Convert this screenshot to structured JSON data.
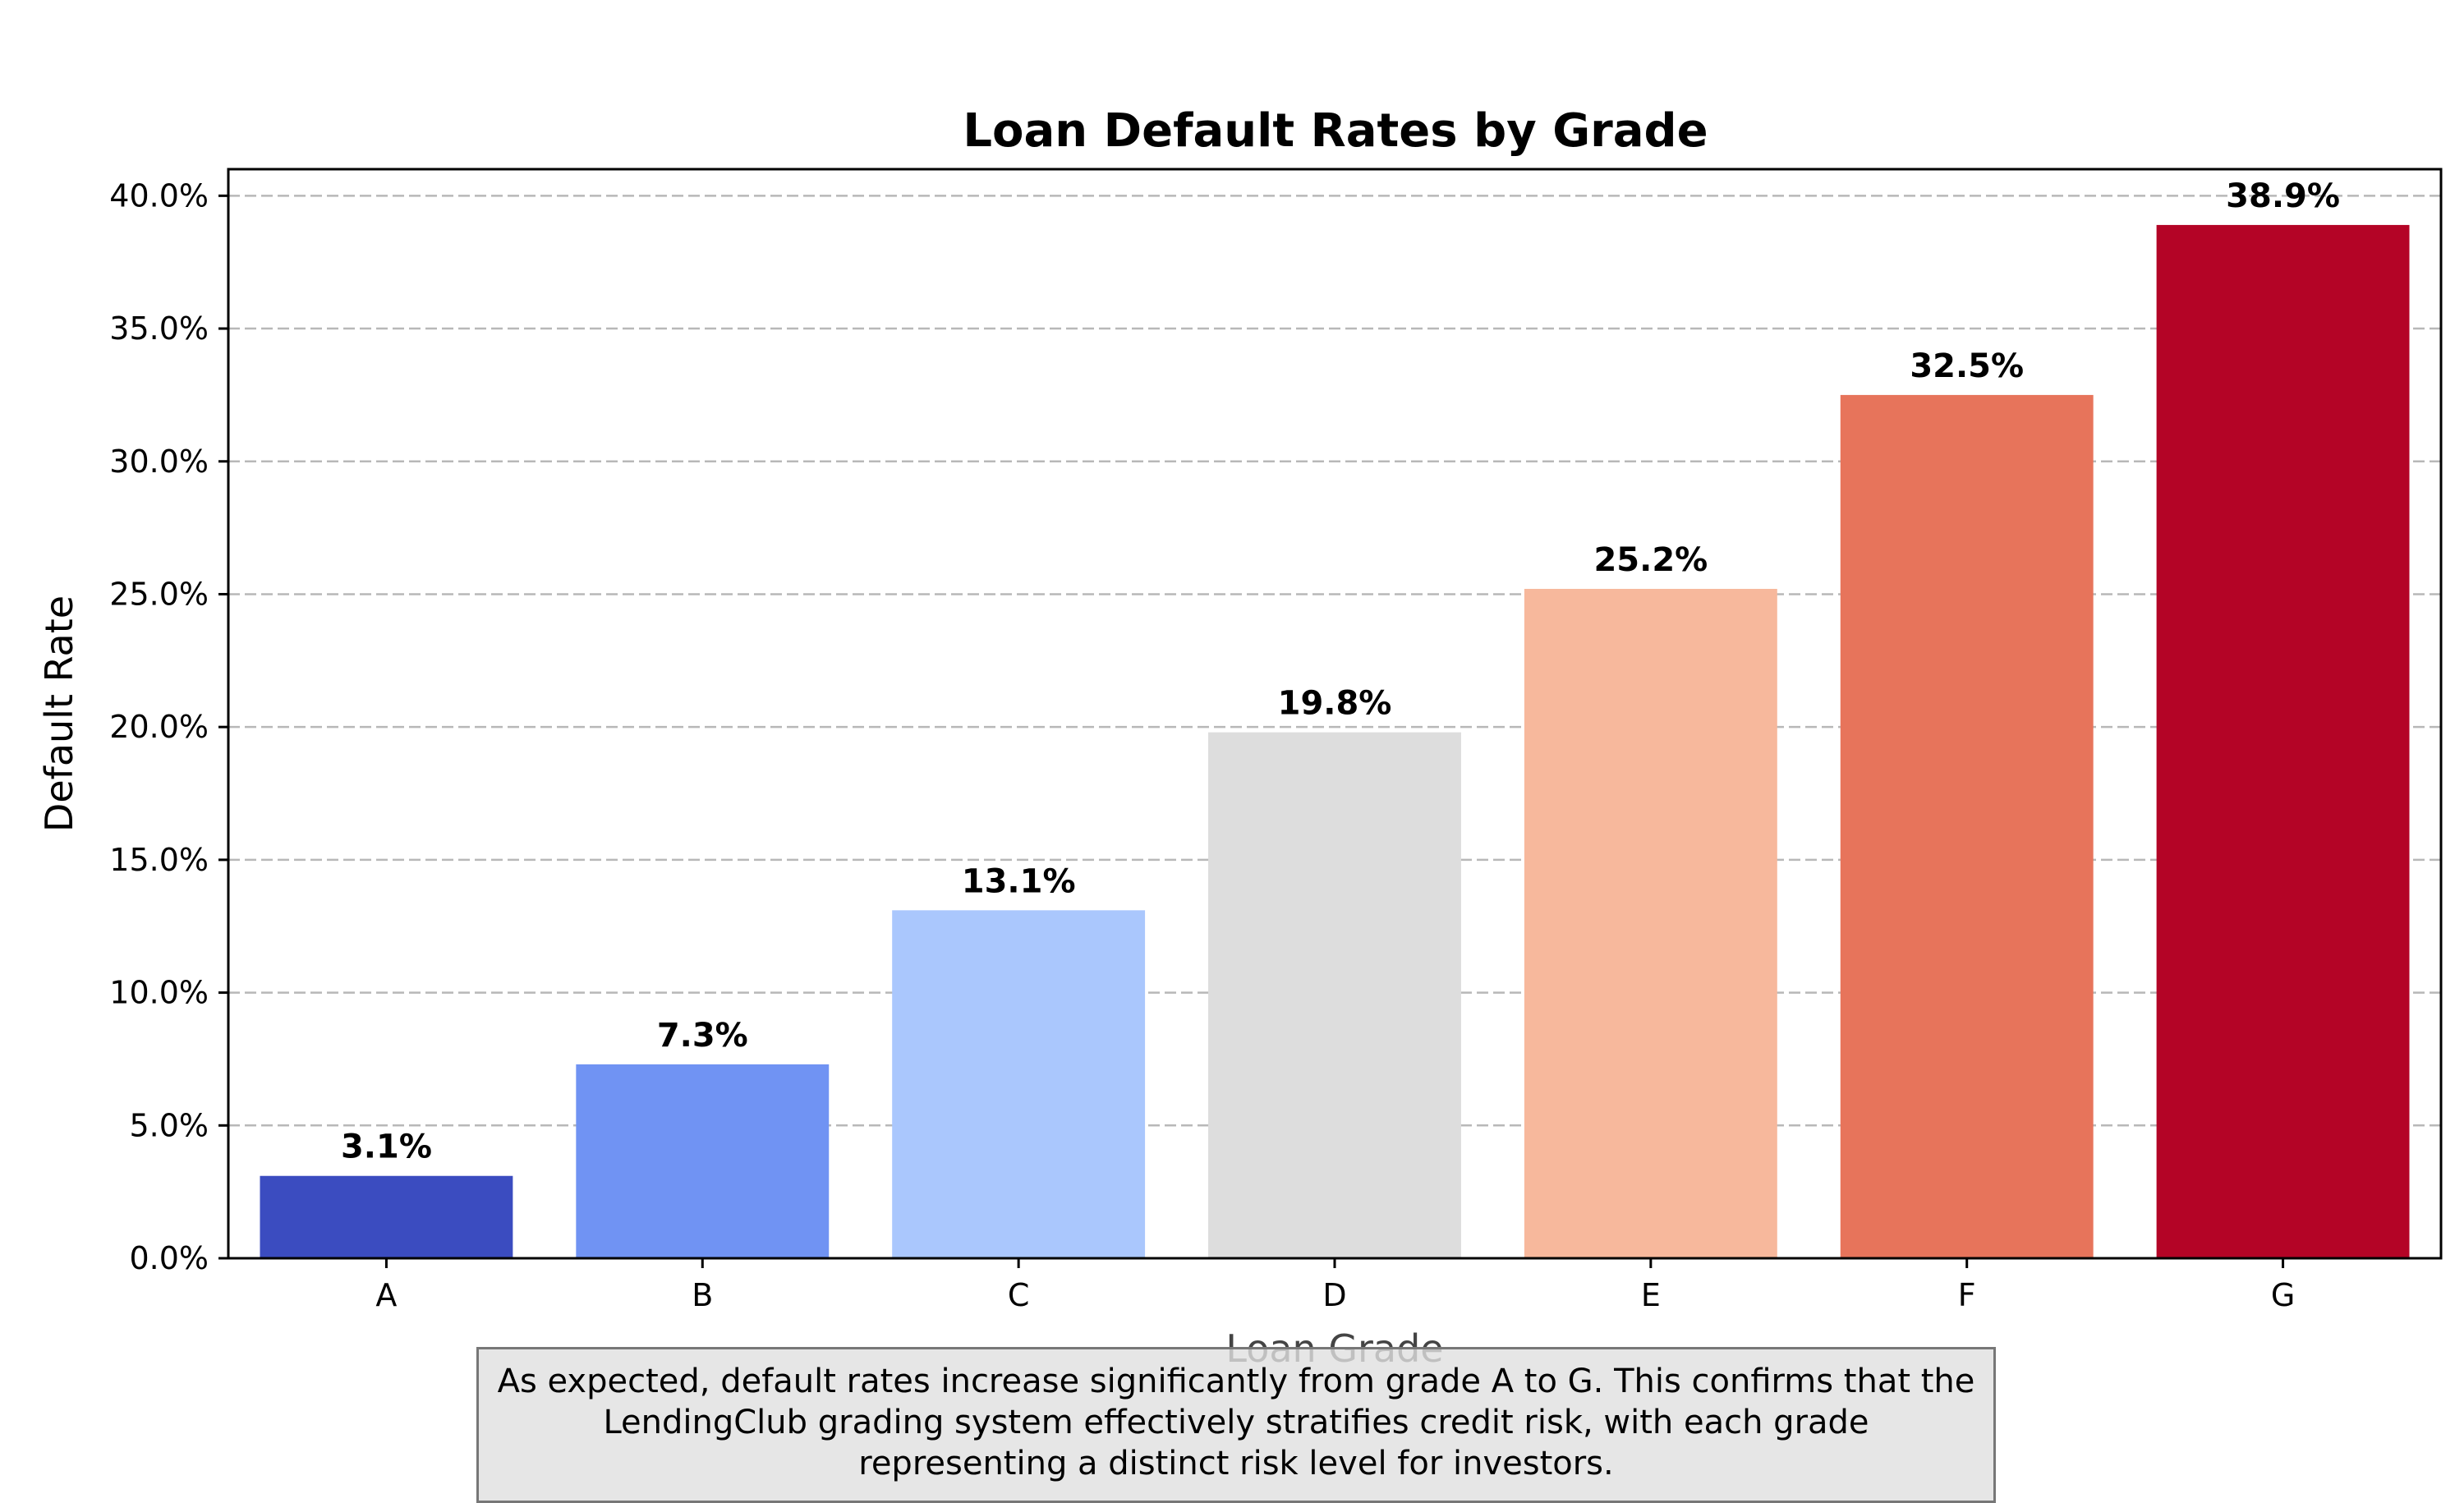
{
  "chart_data": {
    "type": "bar",
    "title": "Loan Default Rates by Grade",
    "xlabel": "Loan Grade",
    "ylabel": "Default Rate",
    "categories": [
      "A",
      "B",
      "C",
      "D",
      "E",
      "F",
      "G"
    ],
    "values": [
      3.1,
      7.3,
      13.1,
      19.8,
      25.2,
      32.5,
      38.9
    ],
    "data_labels": [
      "3.1%",
      "7.3%",
      "13.1%",
      "19.8%",
      "25.2%",
      "32.5%",
      "38.9%"
    ],
    "colors": [
      "#3b4cc0",
      "#7093f3",
      "#aac7fd",
      "#dddddd",
      "#f7b89c",
      "#e7745b",
      "#b40426"
    ],
    "ylim": [
      0,
      41
    ],
    "y_ticks": [
      0,
      5,
      10,
      15,
      20,
      25,
      30,
      35,
      40
    ],
    "y_tick_labels": [
      "0.0%",
      "5.0%",
      "10.0%",
      "15.0%",
      "20.0%",
      "25.0%",
      "30.0%",
      "35.0%",
      "40.0%"
    ],
    "grid": "y-dashed",
    "legend": "none"
  },
  "annotation": {
    "text": "As expected, default rates increase significantly from grade A to G. This confirms that the LendingClub grading system effectively stratifies credit risk, with each grade representing a distinct risk level for investors."
  }
}
